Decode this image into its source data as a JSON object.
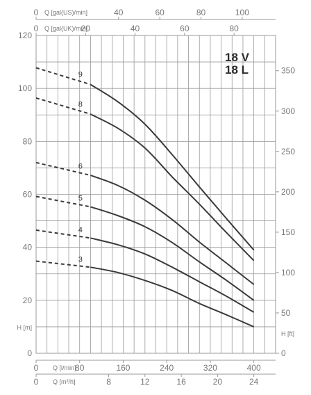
{
  "chart_data": {
    "type": "line",
    "title": "",
    "models": [
      "18 V",
      "18 L"
    ],
    "ylabel_left": "H [m]",
    "ylabel_right": "H [ft]",
    "ylim_left": [
      0,
      120
    ],
    "ylim_right_ft": [
      0,
      393.7
    ],
    "left_ticks": [
      0,
      20,
      40,
      60,
      80,
      100,
      120
    ],
    "right_ticks": [
      0,
      50,
      100,
      150,
      200,
      250,
      300,
      350
    ],
    "axes": {
      "lpm": {
        "label": "Q [l/min]",
        "ticks": [
          0,
          80,
          160,
          240,
          320,
          400
        ],
        "range": [
          0,
          440
        ]
      },
      "m3h": {
        "label": "Q [m³/h]",
        "ticks": [
          0,
          8,
          12,
          16,
          20,
          24
        ],
        "range": [
          0,
          26.4
        ]
      },
      "usgpm": {
        "label": "Q [gal(US)/min]",
        "ticks": [
          0,
          40,
          60,
          80,
          100
        ],
        "range": [
          0,
          116.2
        ]
      },
      "ukgpm": {
        "label": "Q [gal(UK)/min]",
        "ticks": [
          0,
          20,
          40,
          60,
          80
        ],
        "range": [
          0,
          96.8
        ]
      }
    },
    "grid_x_lpm": [
      0,
      20,
      40,
      60,
      80,
      100,
      120,
      140,
      160,
      180,
      200,
      220,
      240,
      260,
      280,
      300,
      320,
      340,
      360,
      380,
      400,
      420,
      440
    ],
    "grid_y_m": [
      0,
      10,
      20,
      30,
      40,
      50,
      60,
      70,
      80,
      90,
      100,
      110,
      120
    ],
    "dashed_until_lpm": 100,
    "series": [
      {
        "name": "3",
        "x": [
          0,
          100,
          150,
          200,
          250,
          300,
          350,
          400
        ],
        "y": [
          34.8,
          32.5,
          30.5,
          27.5,
          23.7,
          18.8,
          14.5,
          10.0
        ]
      },
      {
        "name": "4",
        "x": [
          0,
          100,
          150,
          200,
          250,
          300,
          350,
          400
        ],
        "y": [
          46.5,
          43.5,
          41.0,
          37.5,
          32.5,
          27.0,
          21.5,
          15.5
        ]
      },
      {
        "name": "5",
        "x": [
          0,
          100,
          150,
          200,
          250,
          300,
          350,
          400
        ],
        "y": [
          59.2,
          55.3,
          52.0,
          47.8,
          41.8,
          34.5,
          27.5,
          20.0
        ]
      },
      {
        "name": "6",
        "x": [
          0,
          100,
          150,
          200,
          250,
          300,
          350,
          400
        ],
        "y": [
          72.0,
          67.2,
          63.4,
          57.8,
          50.5,
          42.0,
          34.0,
          26.0
        ]
      },
      {
        "name": "8",
        "x": [
          0,
          100,
          150,
          200,
          250,
          300,
          350,
          400
        ],
        "y": [
          96.4,
          90.3,
          85.0,
          77.5,
          66.6,
          56.3,
          45.5,
          35.0
        ]
      },
      {
        "name": "9",
        "x": [
          0,
          100,
          150,
          200,
          250,
          300,
          350,
          400
        ],
        "y": [
          107.8,
          101.5,
          95.0,
          86.5,
          75.0,
          62.8,
          50.8,
          39.0
        ]
      }
    ],
    "grid": true
  }
}
